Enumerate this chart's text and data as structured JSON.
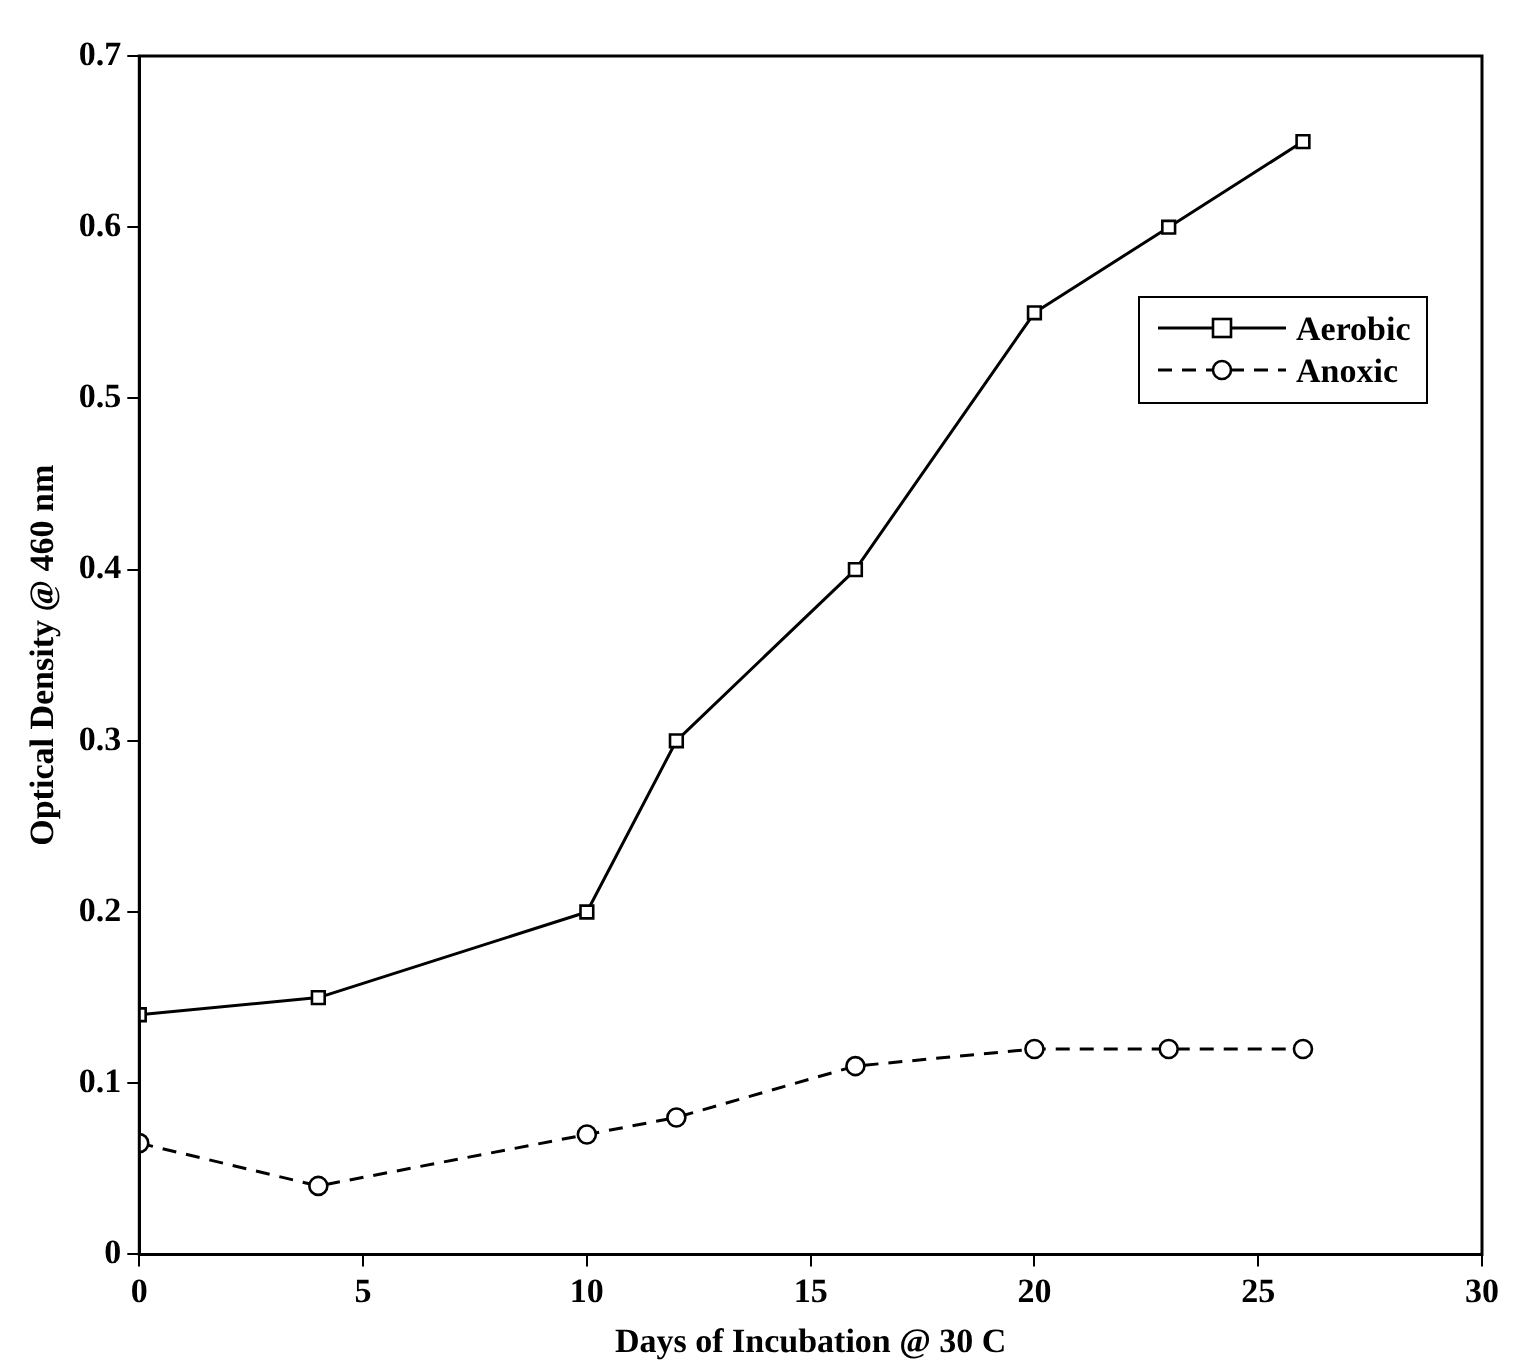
{
  "chart_data": {
    "type": "line",
    "xlabel": "Days of Incubation @ 30 C",
    "ylabel": "Optical Density @ 460 nm",
    "x": [
      0,
      4,
      10,
      12,
      16,
      20,
      23,
      26
    ],
    "series": [
      {
        "name": "Aerobic",
        "color": "#000000",
        "marker": "square",
        "line_style": "solid",
        "values": [
          0.14,
          0.15,
          0.2,
          0.3,
          0.4,
          0.55,
          0.6,
          0.65
        ]
      },
      {
        "name": "Anoxic",
        "color": "#000000",
        "marker": "circle",
        "line_style": "dashed",
        "values": [
          0.065,
          0.04,
          0.07,
          0.08,
          0.11,
          0.12,
          0.12,
          0.12
        ]
      }
    ],
    "xlim": [
      0,
      30
    ],
    "xticks": [
      0,
      5,
      10,
      15,
      20,
      25,
      30
    ],
    "ylim": [
      0,
      0.7
    ],
    "yticks": [
      0,
      0.1,
      0.2,
      0.3,
      0.4,
      0.5,
      0.6,
      0.7
    ],
    "grid": false,
    "legend": "right"
  }
}
